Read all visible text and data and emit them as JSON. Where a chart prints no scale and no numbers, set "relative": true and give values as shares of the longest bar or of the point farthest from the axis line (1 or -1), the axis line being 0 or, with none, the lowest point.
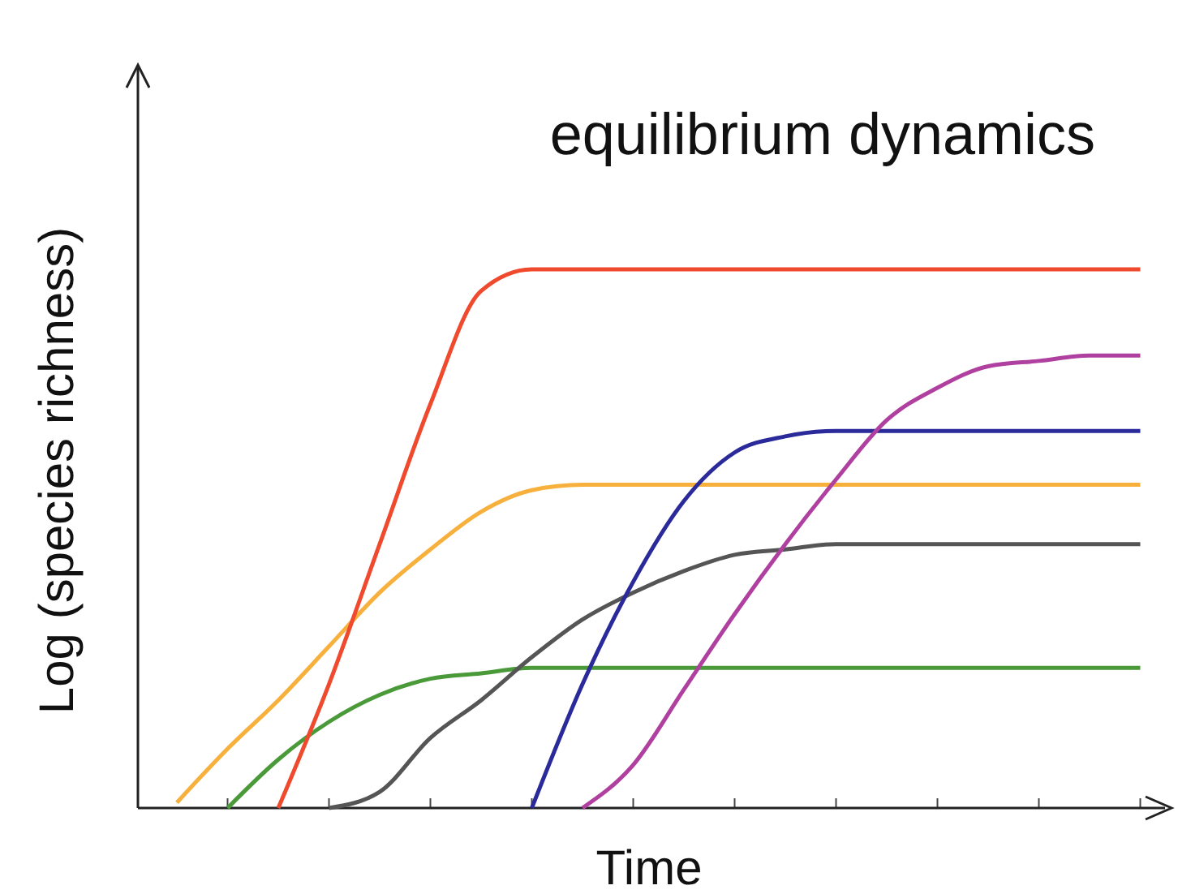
{
  "chart_data": {
    "type": "line",
    "title": "equilibrium dynamics",
    "xlabel": "Time",
    "ylabel": "Log (species richness)",
    "relative": true,
    "marker": "none",
    "line_style": "solid",
    "categories": [
      null,
      null,
      null,
      null,
      null,
      null,
      null,
      null,
      null,
      null,
      null,
      null,
      null,
      null,
      null,
      null,
      null,
      null,
      null,
      null
    ],
    "series": [
      {
        "color": "#f8b03c",
        "values": [
          0.01,
          0.11,
          0.2,
          0.3,
          0.4,
          0.48,
          0.55,
          0.59,
          0.6,
          0.6,
          0.6,
          0.6,
          0.6,
          0.6,
          0.6,
          0.6,
          0.6,
          0.6,
          0.6,
          0.6
        ]
      },
      {
        "color": "#4a9a3a",
        "values": [
          null,
          0,
          0.09,
          0.16,
          0.21,
          0.24,
          0.25,
          0.26,
          0.26,
          0.26,
          0.26,
          0.26,
          0.26,
          0.26,
          0.26,
          0.26,
          0.26,
          0.26,
          0.26,
          0.26
        ]
      },
      {
        "color": "#f04a2e",
        "values": [
          null,
          null,
          0,
          0.23,
          0.49,
          0.75,
          0.96,
          1,
          1,
          1,
          1,
          1,
          1,
          1,
          1,
          1,
          1,
          1,
          1,
          1
        ]
      },
      {
        "color": "#555555",
        "values": [
          null,
          null,
          null,
          0,
          0.03,
          0.13,
          0.2,
          0.28,
          0.35,
          0.4,
          0.44,
          0.47,
          0.48,
          0.49,
          0.49,
          0.49,
          0.49,
          0.49,
          0.49,
          0.49
        ]
      },
      {
        "color": "#2a2a9a",
        "values": [
          null,
          null,
          null,
          null,
          null,
          null,
          null,
          0,
          0.23,
          0.42,
          0.57,
          0.66,
          0.69,
          0.7,
          0.7,
          0.7,
          0.7,
          0.7,
          0.7,
          0.7
        ]
      },
      {
        "color": "#b040a0",
        "values": [
          null,
          null,
          null,
          null,
          null,
          null,
          null,
          null,
          0,
          0.08,
          0.22,
          0.36,
          0.49,
          0.61,
          0.72,
          0.78,
          0.82,
          0.83,
          0.84,
          0.84
        ]
      }
    ]
  }
}
